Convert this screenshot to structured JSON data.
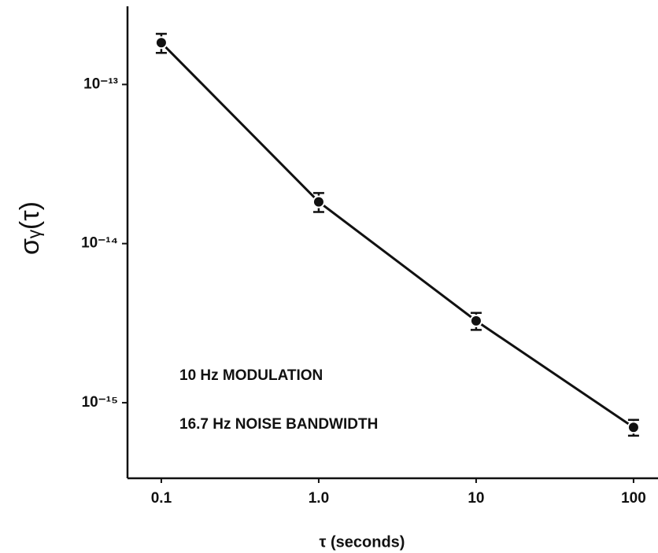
{
  "chart_data": {
    "type": "scatter",
    "xlabel": "τ (seconds)",
    "ylabel": "σᵧ(τ)",
    "annotations": [
      "10 Hz MODULATION",
      "16.7 Hz NOISE BANDWIDTH"
    ],
    "x": [
      0.1,
      1,
      10,
      100
    ],
    "series": [
      {
        "values": [
          1.83e-13,
          1.83e-14,
          3.27e-15,
          7e-16
        ],
        "errors": [
          2.5e-14,
          2.5e-15,
          4e-16,
          8e-17
        ],
        "color": "#111111"
      }
    ],
    "xscale": "log",
    "yscale": "log",
    "xlim": [
      0.061,
      143
    ],
    "ylim": [
      3.35e-16,
      3.1e-13
    ],
    "xticks": [
      0.1,
      {
        "value": 1,
        "label": "1.0"
      },
      10,
      100
    ],
    "yticks": [
      {
        "value": 1e-13,
        "label": "10⁻¹³"
      },
      {
        "value": 1e-14,
        "label": "10⁻¹⁴"
      },
      {
        "value": 1e-15,
        "label": "10⁻¹⁵"
      }
    ],
    "grid": false
  }
}
